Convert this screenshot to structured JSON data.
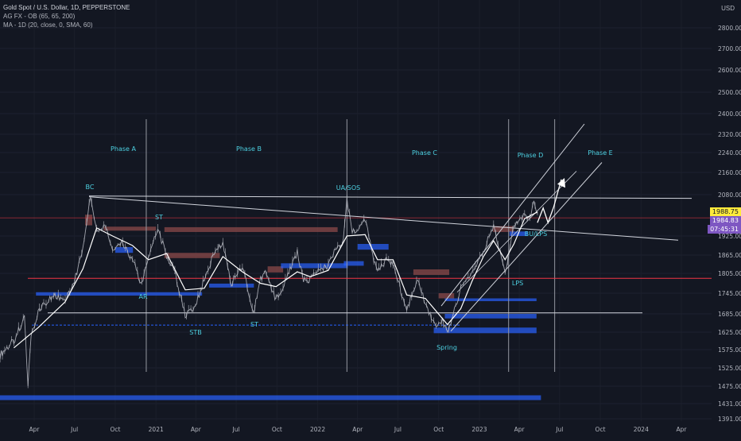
{
  "legend": {
    "symbol": "Gold Spot / U.S. Dollar, 1D, PEPPERSTONE",
    "indicator1": "AG FX - OB (65, 65, 200)",
    "indicator2": "MA - 1D (20, close, 0, SMA, 60)"
  },
  "price_axis": {
    "currency": "USD",
    "last_price": "1988.75",
    "close_price": "1984.83",
    "countdown": "07:45:31"
  },
  "colors": {
    "background": "#131722",
    "price_line": "#b2b5be",
    "ma_line": "#ffffff",
    "demand_block": "#2962ff",
    "supply_block": "#8b4a4a",
    "annotation": "#4dd0e1",
    "phase_line": "#9598a1",
    "resistance_line": "#f23645",
    "last_price_bg": "#ffeb3b",
    "countdown_bg": "#7e57c2"
  },
  "chart_data": {
    "type": "line",
    "title": "Gold Spot / U.S. Dollar, 1D, PEPPERSTONE",
    "xlabel": "",
    "ylabel": "",
    "ylim": [
      1380,
      2900
    ],
    "grid": true,
    "x_ticks": [
      "Apr",
      "Jul",
      "Oct",
      "2021",
      "Apr",
      "Jul",
      "Oct",
      "2022",
      "Apr",
      "Jul",
      "Oct",
      "2023",
      "Apr",
      "Jul",
      "Oct",
      "2024",
      "Apr"
    ],
    "y_ticks": [
      "2800.00",
      "2700.00",
      "2600.00",
      "2500.00",
      "2400.00",
      "2320.00",
      "2240.00",
      "2160.00",
      "2080.00",
      "1988.75",
      "1925.00",
      "1865.00",
      "1805.00",
      "1745.00",
      "1685.00",
      "1625.00",
      "1575.00",
      "1525.00",
      "1475.00",
      "1431.00",
      "1391.00"
    ],
    "series": [
      {
        "x": [
          "2020-01-15",
          "2020-02-15",
          "2020-03-10",
          "2020-03-18",
          "2020-03-25",
          "2020-04-10",
          "2020-04-25",
          "2020-05-15",
          "2020-06-10",
          "2020-07-01",
          "2020-07-20",
          "2020-08-06",
          "2020-08-20",
          "2020-09-10",
          "2020-09-25",
          "2020-10-15",
          "2020-11-09",
          "2020-11-20",
          "2020-11-30",
          "2020-12-15",
          "2021-01-05",
          "2021-01-25",
          "2021-02-10",
          "2021-02-28",
          "2021-03-08",
          "2021-03-31",
          "2021-04-20",
          "2021-05-15",
          "2021-06-01",
          "2021-06-20",
          "2021-07-15",
          "2021-08-09",
          "2021-08-25",
          "2021-09-05",
          "2021-09-29",
          "2021-10-20",
          "2021-11-16",
          "2021-11-30",
          "2021-12-15",
          "2022-01-05",
          "2022-01-25",
          "2022-02-10",
          "2022-02-28",
          "2022-03-08",
          "2022-03-20",
          "2022-04-05",
          "2022-04-18",
          "2022-05-05",
          "2022-05-16",
          "2022-06-05",
          "2022-06-20",
          "2022-07-05",
          "2022-07-21",
          "2022-08-15",
          "2022-09-01",
          "2022-09-28",
          "2022-10-10",
          "2022-10-21",
          "2022-11-03",
          "2022-11-20",
          "2022-12-15",
          "2023-01-10",
          "2023-02-02",
          "2023-02-28",
          "2023-03-20",
          "2023-04-13",
          "2023-04-25",
          "2023-05-04",
          "2023-05-12"
        ],
        "values": [
          1560,
          1600,
          1670,
          1475,
          1610,
          1690,
          1715,
          1735,
          1730,
          1780,
          1890,
          2068,
          1940,
          1960,
          1880,
          1905,
          1852,
          1805,
          1775,
          1860,
          1950,
          1860,
          1820,
          1720,
          1680,
          1705,
          1790,
          1880,
          1905,
          1775,
          1830,
          1690,
          1790,
          1810,
          1725,
          1780,
          1875,
          1780,
          1790,
          1820,
          1830,
          1890,
          1910,
          2060,
          1940,
          1950,
          1990,
          1860,
          1815,
          1850,
          1840,
          1765,
          1700,
          1790,
          1710,
          1640,
          1665,
          1618,
          1680,
          1760,
          1800,
          1880,
          1960,
          1810,
          1960,
          2005,
          1990,
          2048,
          2010
        ]
      },
      {
        "x": [
          "2020-02-15",
          "2020-04-10",
          "2020-06-10",
          "2020-07-20",
          "2020-08-20",
          "2020-09-25",
          "2020-11-09",
          "2020-12-15",
          "2021-01-25",
          "2021-03-08",
          "2021-04-20",
          "2021-06-01",
          "2021-07-15",
          "2021-08-25",
          "2021-09-29",
          "2021-11-16",
          "2021-12-15",
          "2022-01-25",
          "2022-03-08",
          "2022-04-18",
          "2022-05-16",
          "2022-06-20",
          "2022-07-21",
          "2022-09-01",
          "2022-10-21",
          "2022-11-20",
          "2022-12-15",
          "2023-01-10",
          "2023-02-02",
          "2023-02-28",
          "2023-03-20",
          "2023-04-13",
          "2023-05-12"
        ],
        "values": [
          1580,
          1640,
          1720,
          1820,
          1955,
          1925,
          1895,
          1850,
          1870,
          1755,
          1760,
          1860,
          1810,
          1775,
          1765,
          1810,
          1795,
          1815,
          1925,
          1930,
          1850,
          1850,
          1740,
          1730,
          1650,
          1700,
          1780,
          1860,
          1910,
          1850,
          1900,
          1990,
          2015
        ]
      }
    ]
  },
  "annotations": {
    "phase_a": "Phase A",
    "phase_b": "Phase B",
    "phase_c": "Phase C",
    "phase_d": "Phase D",
    "phase_e": "Phase E",
    "bc": "BC",
    "st1": "ST",
    "ar": "AR",
    "stb": "STB",
    "st2": "ST",
    "ua_sos": "UA/SOS",
    "spring": "Spring",
    "lps": "LPS",
    "bu_lps": "BU/LPS"
  }
}
